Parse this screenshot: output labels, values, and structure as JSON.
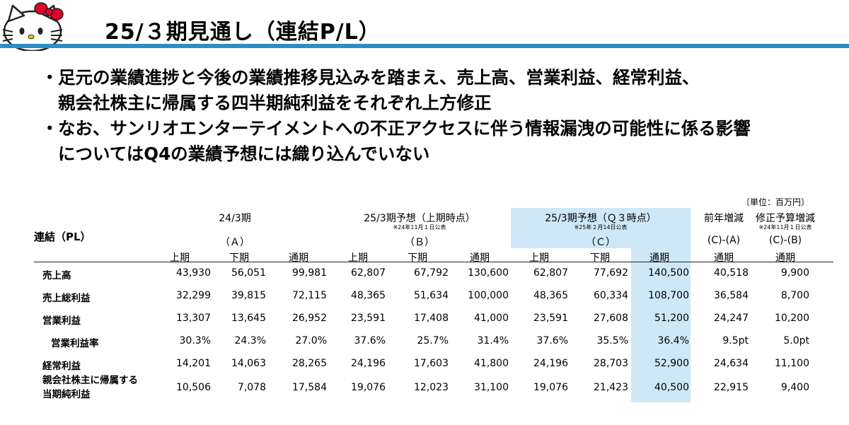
{
  "header": {
    "title": "25/３期見通し（連結P/L）",
    "accent_color": "#2a8fc4",
    "logo_icon": "hello-kitty-logo"
  },
  "bullets": [
    {
      "marker": "・",
      "line1": "足元の業績進捗と今後の業績推移見込みを踏まえ、売上高、営業利益、経常利益、",
      "line2": "親会社株主に帰属する四半期純利益をそれぞれ上方修正"
    },
    {
      "marker": "・",
      "line1": "なお、サンリオエンターテイメントへの不正アクセスに伴う情報漏洩の可能性に係る影響",
      "line2": "についてはQ4の業績予想には織り込んでいない"
    }
  ],
  "table": {
    "unit": "〔単位：百万円〕",
    "row_header_title": "連結（PL）",
    "groups": [
      {
        "title": "24/3期",
        "note": "",
        "code": "（Ａ）"
      },
      {
        "title": "25/3期予想（上期時点）",
        "note": "※24年11月１日公表",
        "code": "（Ｂ）"
      },
      {
        "title": "25/3期予想（Ｑ３時点）",
        "note": "※25年２月14日公表",
        "code": "（Ｃ）"
      }
    ],
    "diff_groups": [
      {
        "title": "前年増減",
        "note": "",
        "code": "(C)-(A)",
        "sub": "通期"
      },
      {
        "title": "修正予算増減",
        "note": "※24年11月１日公表",
        "code": "(C)-(B)",
        "sub": "通期"
      }
    ],
    "subheaders": [
      "上期",
      "下期",
      "通期"
    ],
    "highlight_color": "#cfe8f7",
    "rows": [
      {
        "label": "売上高",
        "values": [
          "43,930",
          "56,051",
          "99,981",
          "62,807",
          "67,792",
          "130,600",
          "62,807",
          "77,692",
          "140,500",
          "40,518",
          "9,900"
        ]
      },
      {
        "label": "売上総利益",
        "values": [
          "32,299",
          "39,815",
          "72,115",
          "48,365",
          "51,634",
          "100,000",
          "48,365",
          "60,334",
          "108,700",
          "36,584",
          "8,700"
        ]
      },
      {
        "label": "営業利益",
        "values": [
          "13,307",
          "13,645",
          "26,952",
          "23,591",
          "17,408",
          "41,000",
          "23,591",
          "27,608",
          "51,200",
          "24,247",
          "10,200"
        ]
      },
      {
        "label": "営業利益率",
        "values": [
          "30.3%",
          "24.3%",
          "27.0%",
          "37.6%",
          "25.7%",
          "31.4%",
          "37.6%",
          "35.5%",
          "36.4%",
          "9.5pt",
          "5.0pt"
        ]
      },
      {
        "label": "経常利益",
        "values": [
          "14,201",
          "14,063",
          "28,265",
          "24,196",
          "17,603",
          "41,800",
          "24,196",
          "28,703",
          "52,900",
          "24,634",
          "11,100"
        ]
      },
      {
        "label_line1": "親会社株主に帰属する",
        "label_line2": "当期純利益",
        "values": [
          "10,506",
          "7,078",
          "17,584",
          "19,076",
          "12,023",
          "31,100",
          "19,076",
          "21,423",
          "40,500",
          "22,915",
          "9,400"
        ]
      }
    ]
  }
}
